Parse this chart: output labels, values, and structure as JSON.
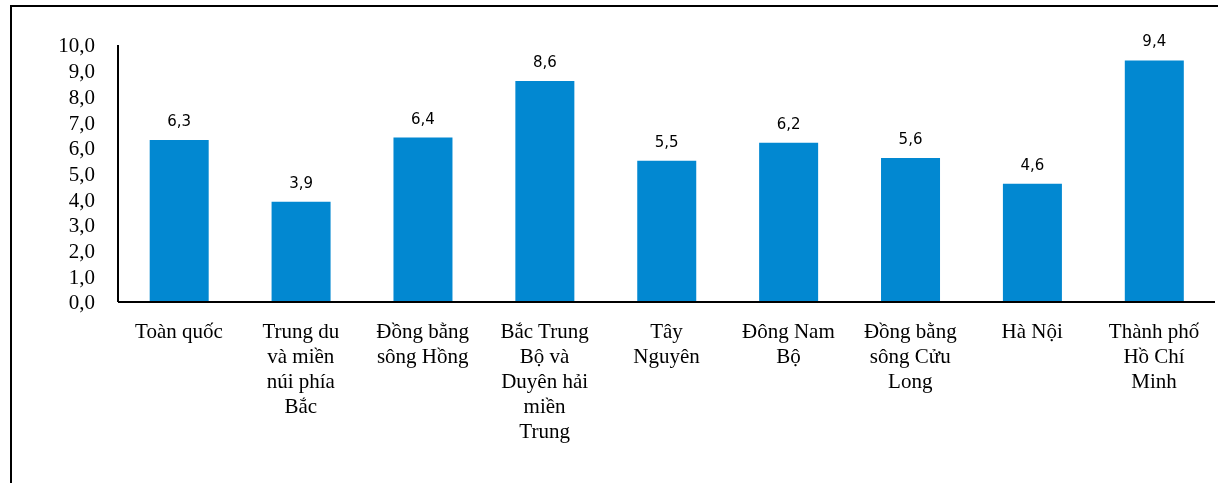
{
  "chart_data": {
    "type": "bar",
    "categories": [
      "Toàn quốc",
      "Trung du và miền núi phía Bắc",
      "Đồng bằng sông Hồng",
      "Bắc Trung Bộ và Duyên hải miền Trung",
      "Tây Nguyên",
      "Đông Nam Bộ",
      "Đồng bằng sông Cửu Long",
      "Hà Nội",
      "Thành phố Hồ Chí Minh"
    ],
    "values": [
      6.3,
      3.9,
      6.4,
      8.6,
      5.5,
      6.2,
      5.6,
      4.6,
      9.4
    ],
    "value_labels": [
      "6,3",
      "3,9",
      "6,4",
      "8,6",
      "5,5",
      "6,2",
      "5,6",
      "4,6",
      "9,4"
    ],
    "color": "#0288d1",
    "ylim": [
      0,
      10
    ],
    "yticks": [
      {
        "value": 0,
        "label": "0,0"
      },
      {
        "value": 1,
        "label": "1,0"
      },
      {
        "value": 2,
        "label": "2,0"
      },
      {
        "value": 3,
        "label": "3,0"
      },
      {
        "value": 4,
        "label": "4,0"
      },
      {
        "value": 5,
        "label": "5,0"
      },
      {
        "value": 6,
        "label": "6,0"
      },
      {
        "value": 7,
        "label": "7,0"
      },
      {
        "value": 8,
        "label": "8,0"
      },
      {
        "value": 9,
        "label": "9,0"
      },
      {
        "value": 10,
        "label": "10,0"
      }
    ]
  }
}
